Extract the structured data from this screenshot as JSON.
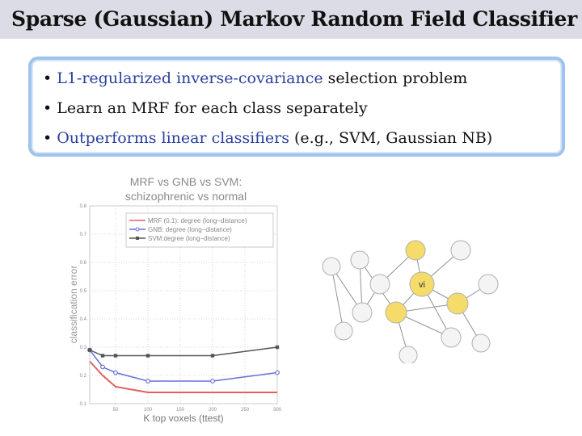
{
  "slide": {
    "title": "Sparse (Gaussian) Markov Random Field Classifier",
    "bullets": [
      {
        "dot": "•",
        "highlight": "L1-regularized inverse-covariance",
        "rest": " selection problem"
      },
      {
        "dot": "•",
        "highlight": "",
        "rest": "Learn an MRF for each class separately"
      },
      {
        "dot": "•",
        "highlight": "Outperforms linear classifiers",
        "rest": " (e.g., SVM, Gaussian NB)"
      }
    ],
    "highlight_color": "#2a3f9e"
  },
  "chart_data": {
    "type": "line",
    "title": "MRF vs GNB vs SVM:",
    "subtitle": "schizophrenic vs normal",
    "xlabel": "K top voxels (ttest)",
    "ylabel": "classification error",
    "xlim": [
      10,
      300
    ],
    "ylim": [
      0.1,
      0.8
    ],
    "xticks": [
      "50",
      "100",
      "150",
      "200",
      "250",
      "300"
    ],
    "yticks": [
      "0.1",
      "0.2",
      "0.3",
      "0.4",
      "0.5",
      "0.6",
      "0.7",
      "0.8"
    ],
    "legend_position": "top-right",
    "series": [
      {
        "name": "MRF (0.1): degree (long−distance)",
        "color": "#e06060",
        "marker": "none",
        "x": [
          10,
          30,
          50,
          100,
          200,
          300
        ],
        "y": [
          0.25,
          0.2,
          0.16,
          0.14,
          0.14,
          0.14
        ]
      },
      {
        "name": "GNB: degree (long−distance)",
        "color": "#6670d8",
        "marker": "circle",
        "x": [
          10,
          30,
          50,
          100,
          200,
          300
        ],
        "y": [
          0.29,
          0.23,
          0.21,
          0.18,
          0.18,
          0.21
        ]
      },
      {
        "name": "SVM:degree (long−distance)",
        "color": "#555555",
        "marker": "square",
        "x": [
          10,
          30,
          50,
          100,
          200,
          300
        ],
        "y": [
          0.29,
          0.27,
          0.27,
          0.27,
          0.27,
          0.3
        ]
      }
    ]
  },
  "graph": {
    "center_label": "vi",
    "yellow": "#f5dc6a",
    "white": "#f4f4f4"
  }
}
